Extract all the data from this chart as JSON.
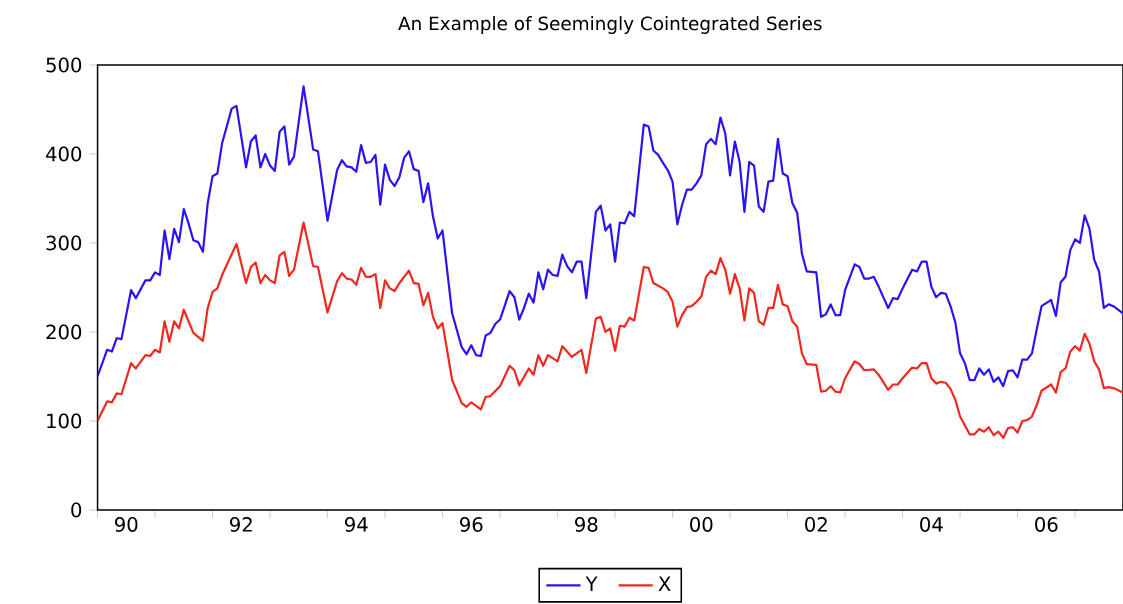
{
  "chart_data": {
    "type": "line",
    "title": "An Example of Seemingly Cointegrated Series",
    "legend": "bottom",
    "xlim": [
      "1990-01",
      "2007-11"
    ],
    "ylim": [
      0,
      500
    ],
    "yticks": [
      0,
      100,
      200,
      300,
      400,
      500
    ],
    "xticks": [
      {
        "value": "1990",
        "label": null
      },
      {
        "value": "1991",
        "label": null
      },
      {
        "value": "1992",
        "label": null
      },
      {
        "value": "1993",
        "label": null
      },
      {
        "value": "1994",
        "label": null
      },
      {
        "value": "1995",
        "label": null
      },
      {
        "value": "1996",
        "label": null
      },
      {
        "value": "1997",
        "label": null
      },
      {
        "value": "1998",
        "label": null
      },
      {
        "value": "1999",
        "label": null
      },
      {
        "value": "2000",
        "label": null
      },
      {
        "value": "2001",
        "label": null
      },
      {
        "value": "2002",
        "label": null
      },
      {
        "value": "2003",
        "label": null
      },
      {
        "value": "2004",
        "label": null
      },
      {
        "value": "2005",
        "label": null
      },
      {
        "value": "2006",
        "label": null
      },
      {
        "value": "2007",
        "label": null
      },
      {
        "value": "1990-07",
        "label": "90"
      },
      {
        "value": "1992-07",
        "label": "92"
      },
      {
        "value": "1994-07",
        "label": "94"
      },
      {
        "value": "1996-07",
        "label": "96"
      },
      {
        "value": "1998-07",
        "label": "98"
      },
      {
        "value": "2000-07",
        "label": "00"
      },
      {
        "value": "2002-07",
        "label": "02"
      },
      {
        "value": "2004-07",
        "label": "04"
      },
      {
        "value": "2006-07",
        "label": "06"
      }
    ],
    "series": [
      {
        "name": "Y",
        "color": "#2a14f0",
        "x": [
          "1990-01",
          "1990-03",
          "1990-04",
          "1990-05",
          "1990-06",
          "1990-08",
          "1990-09",
          "1990-11",
          "1990-12",
          "1991-01",
          "1991-02",
          "1991-03",
          "1991-04",
          "1991-05",
          "1991-06",
          "1991-07",
          "1991-08",
          "1991-09",
          "1991-10",
          "1991-11",
          "1991-12",
          "1992-01",
          "1992-02",
          "1992-03",
          "1992-05",
          "1992-06",
          "1992-08",
          "1992-09",
          "1992-10",
          "1992-11",
          "1992-12",
          "1993-01",
          "1993-02",
          "1993-03",
          "1993-04",
          "1993-05",
          "1993-06",
          "1993-08",
          "1993-10",
          "1993-11",
          "1994-01",
          "1994-03",
          "1994-04",
          "1994-05",
          "1994-06",
          "1994-07",
          "1994-08",
          "1994-09",
          "1994-10",
          "1994-11",
          "1994-12",
          "1995-01",
          "1995-02",
          "1995-03",
          "1995-04",
          "1995-05",
          "1995-06",
          "1995-07",
          "1995-08",
          "1995-09",
          "1995-10",
          "1995-11",
          "1995-12",
          "1996-01",
          "1996-03",
          "1996-05",
          "1996-06",
          "1996-07",
          "1996-08",
          "1996-09",
          "1996-10",
          "1996-11",
          "1996-12",
          "1997-01",
          "1997-03",
          "1997-04",
          "1997-05",
          "1997-06",
          "1997-07",
          "1997-08",
          "1997-09",
          "1997-10",
          "1997-11",
          "1997-12",
          "1998-01",
          "1998-02",
          "1998-03",
          "1998-04",
          "1998-05",
          "1998-06",
          "1998-07",
          "1998-09",
          "1998-10",
          "1998-11",
          "1998-12",
          "1999-01",
          "1999-02",
          "1999-03",
          "1999-04",
          "1999-05",
          "1999-07",
          "1999-08",
          "1999-09",
          "1999-10",
          "1999-11",
          "1999-12",
          "2000-01",
          "2000-02",
          "2000-03",
          "2000-04",
          "2000-05",
          "2000-06",
          "2000-07",
          "2000-08",
          "2000-09",
          "2000-10",
          "2000-11",
          "2000-12",
          "2001-01",
          "2001-02",
          "2001-03",
          "2001-04",
          "2001-05",
          "2001-06",
          "2001-07",
          "2001-08",
          "2001-09",
          "2001-10",
          "2001-11",
          "2001-12",
          "2002-01",
          "2002-02",
          "2002-03",
          "2002-04",
          "2002-05",
          "2002-07",
          "2002-08",
          "2002-09",
          "2002-10",
          "2002-11",
          "2002-12",
          "2003-01",
          "2003-03",
          "2003-04",
          "2003-05",
          "2003-06",
          "2003-07",
          "2003-08",
          "2003-10",
          "2003-11",
          "2003-12",
          "2004-01",
          "2004-03",
          "2004-04",
          "2004-05",
          "2004-06",
          "2004-07",
          "2004-08",
          "2004-09",
          "2004-10",
          "2004-11",
          "2004-12",
          "2005-01",
          "2005-02",
          "2005-03",
          "2005-04",
          "2005-05",
          "2005-06",
          "2005-07",
          "2005-08",
          "2005-09",
          "2005-10",
          "2005-11",
          "2005-12",
          "2006-01",
          "2006-02",
          "2006-03",
          "2006-04",
          "2006-05",
          "2006-06",
          "2006-08",
          "2006-09",
          "2006-10",
          "2006-11",
          "2006-12",
          "2007-01",
          "2007-02",
          "2007-03",
          "2007-04",
          "2007-05",
          "2007-06",
          "2007-07",
          "2007-08",
          "2007-09",
          "2007-11"
        ],
        "values": [
          150,
          180,
          178,
          193,
          192,
          247,
          238,
          258,
          258,
          267,
          264,
          314,
          282,
          316,
          301,
          338,
          322,
          303,
          301,
          290,
          345,
          375,
          378,
          412,
          451,
          454,
          385,
          414,
          421,
          385,
          400,
          387,
          381,
          425,
          431,
          388,
          397,
          476,
          405,
          403,
          325,
          382,
          393,
          386,
          385,
          380,
          410,
          390,
          391,
          399,
          343,
          388,
          371,
          364,
          374,
          396,
          403,
          383,
          381,
          346,
          367,
          330,
          305,
          314,
          221,
          183,
          175,
          185,
          174,
          173,
          196,
          199,
          209,
          214,
          246,
          239,
          214,
          227,
          243,
          233,
          267,
          248,
          270,
          264,
          263,
          287,
          274,
          267,
          279,
          279,
          238,
          335,
          342,
          314,
          321,
          279,
          323,
          322,
          335,
          330,
          433,
          431,
          404,
          399,
          390,
          382,
          369,
          321,
          343,
          360,
          360,
          367,
          376,
          411,
          417,
          411,
          441,
          423,
          376,
          414,
          391,
          335,
          391,
          387,
          341,
          335,
          369,
          370,
          417,
          378,
          375,
          345,
          334,
          288,
          268,
          267,
          217,
          220,
          231,
          219,
          219,
          247,
          276,
          273,
          260,
          260,
          262,
          251,
          227,
          238,
          237,
          249,
          270,
          268,
          279,
          279,
          251,
          239,
          244,
          243,
          229,
          211,
          176,
          165,
          146,
          146,
          159,
          152,
          158,
          144,
          149,
          139,
          156,
          157,
          149,
          169,
          169,
          176,
          203,
          229,
          236,
          218,
          256,
          262,
          292,
          304,
          300,
          331,
          316,
          281,
          268,
          227,
          231,
          229,
          221
        ]
      },
      {
        "name": "X",
        "color": "#f0281e",
        "x": [
          "1990-01",
          "1990-03",
          "1990-04",
          "1990-05",
          "1990-06",
          "1990-08",
          "1990-09",
          "1990-11",
          "1990-12",
          "1991-01",
          "1991-02",
          "1991-03",
          "1991-04",
          "1991-05",
          "1991-06",
          "1991-07",
          "1991-09",
          "1991-11",
          "1991-12",
          "1992-01",
          "1992-02",
          "1992-03",
          "1992-06",
          "1992-08",
          "1992-09",
          "1992-10",
          "1992-11",
          "1992-12",
          "1993-01",
          "1993-02",
          "1993-03",
          "1993-04",
          "1993-05",
          "1993-06",
          "1993-08",
          "1993-10",
          "1993-11",
          "1994-01",
          "1994-03",
          "1994-04",
          "1994-05",
          "1994-06",
          "1994-07",
          "1994-08",
          "1994-09",
          "1994-10",
          "1994-11",
          "1994-12",
          "1995-01",
          "1995-02",
          "1995-03",
          "1995-04",
          "1995-06",
          "1995-07",
          "1995-08",
          "1995-09",
          "1995-10",
          "1995-11",
          "1995-12",
          "1996-01",
          "1996-03",
          "1996-05",
          "1996-06",
          "1996-07",
          "1996-09",
          "1996-10",
          "1996-11",
          "1997-01",
          "1997-03",
          "1997-04",
          "1997-05",
          "1997-07",
          "1997-08",
          "1997-09",
          "1997-10",
          "1997-11",
          "1998-01",
          "1998-02",
          "1998-04",
          "1998-06",
          "1998-07",
          "1998-09",
          "1998-10",
          "1998-11",
          "1998-12",
          "1999-01",
          "1999-02",
          "1999-03",
          "1999-04",
          "1999-05",
          "1999-07",
          "1999-08",
          "1999-09",
          "1999-11",
          "1999-12",
          "2000-01",
          "2000-02",
          "2000-03",
          "2000-04",
          "2000-05",
          "2000-06",
          "2000-07",
          "2000-08",
          "2000-09",
          "2000-10",
          "2000-11",
          "2000-12",
          "2001-01",
          "2001-02",
          "2001-03",
          "2001-04",
          "2001-05",
          "2001-06",
          "2001-07",
          "2001-08",
          "2001-09",
          "2001-10",
          "2001-11",
          "2001-12",
          "2002-01",
          "2002-02",
          "2002-03",
          "2002-04",
          "2002-05",
          "2002-07",
          "2002-08",
          "2002-09",
          "2002-10",
          "2002-11",
          "2002-12",
          "2003-01",
          "2003-03",
          "2003-04",
          "2003-05",
          "2003-07",
          "2003-08",
          "2003-10",
          "2003-11",
          "2003-12",
          "2004-01",
          "2004-03",
          "2004-04",
          "2004-05",
          "2004-06",
          "2004-07",
          "2004-08",
          "2004-09",
          "2004-10",
          "2004-11",
          "2004-12",
          "2005-01",
          "2005-03",
          "2005-04",
          "2005-05",
          "2005-06",
          "2005-07",
          "2005-08",
          "2005-09",
          "2005-10",
          "2005-11",
          "2005-12",
          "2006-01",
          "2006-02",
          "2006-03",
          "2006-04",
          "2006-05",
          "2006-06",
          "2006-08",
          "2006-09",
          "2006-10",
          "2006-11",
          "2006-12",
          "2007-01",
          "2007-02",
          "2007-03",
          "2007-04",
          "2007-05",
          "2007-06",
          "2007-07",
          "2007-08",
          "2007-09",
          "2007-11"
        ],
        "values": [
          100,
          122,
          121,
          131,
          130,
          165,
          159,
          174,
          173,
          180,
          177,
          212,
          189,
          212,
          204,
          225,
          199,
          190,
          227,
          245,
          249,
          264,
          299,
          255,
          273,
          278,
          255,
          264,
          258,
          255,
          286,
          290,
          263,
          270,
          323,
          274,
          273,
          222,
          257,
          266,
          260,
          259,
          253,
          272,
          262,
          262,
          265,
          227,
          258,
          249,
          246,
          255,
          269,
          255,
          254,
          230,
          244,
          217,
          204,
          210,
          146,
          120,
          116,
          121,
          113,
          127,
          128,
          139,
          162,
          157,
          140,
          159,
          152,
          174,
          162,
          174,
          167,
          184,
          172,
          180,
          154,
          215,
          217,
          200,
          204,
          179,
          207,
          206,
          216,
          213,
          273,
          272,
          255,
          249,
          245,
          234,
          206,
          219,
          228,
          229,
          234,
          240,
          262,
          269,
          265,
          283,
          270,
          243,
          265,
          249,
          213,
          249,
          244,
          212,
          208,
          227,
          227,
          253,
          231,
          229,
          212,
          206,
          176,
          164,
          163,
          133,
          134,
          139,
          133,
          132,
          148,
          167,
          164,
          157,
          158,
          152,
          135,
          141,
          141,
          148,
          160,
          159,
          165,
          165,
          148,
          142,
          144,
          143,
          136,
          124,
          105,
          85,
          85,
          91,
          88,
          93,
          84,
          88,
          81,
          92,
          93,
          87,
          100,
          101,
          105,
          118,
          134,
          141,
          132,
          155,
          159,
          178,
          184,
          179,
          198,
          187,
          167,
          158,
          137,
          138,
          137,
          132
        ]
      }
    ]
  }
}
